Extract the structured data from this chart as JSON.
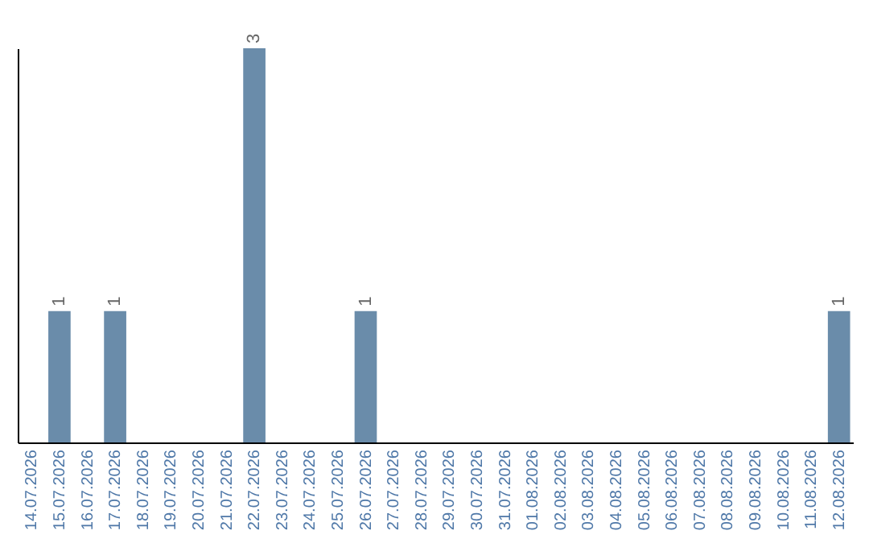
{
  "chart_data": {
    "type": "bar",
    "categories": [
      "14.07.2026",
      "15.07.2026",
      "16.07.2026",
      "17.07.2026",
      "18.07.2026",
      "19.07.2026",
      "20.07.2026",
      "21.07.2026",
      "22.07.2026",
      "23.07.2026",
      "24.07.2026",
      "25.07.2026",
      "26.07.2026",
      "27.07.2026",
      "28.07.2026",
      "29.07.2026",
      "30.07.2026",
      "31.07.2026",
      "01.08.2026",
      "02.08.2026",
      "03.08.2026",
      "04.08.2026",
      "05.08.2026",
      "06.08.2026",
      "07.08.2026",
      "08.08.2026",
      "09.08.2026",
      "10.08.2026",
      "11.08.2026",
      "12.08.2026"
    ],
    "values": [
      null,
      1,
      null,
      1,
      null,
      null,
      null,
      null,
      3,
      null,
      null,
      null,
      1,
      null,
      null,
      null,
      null,
      null,
      null,
      null,
      null,
      null,
      null,
      null,
      null,
      null,
      null,
      null,
      null,
      1
    ],
    "color": "#6a8caa",
    "data_labels": true
  }
}
